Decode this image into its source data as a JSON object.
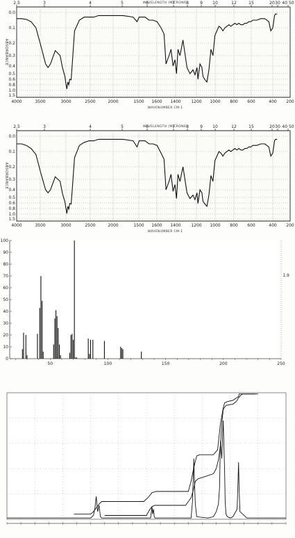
{
  "chart_data": [
    {
      "type": "line",
      "title": "WAVELENGTH (MICRONS)",
      "xlabel": "WAVENUMBER CM-1",
      "ylabel": "ABSORBANCE",
      "top_ticks": [
        "2.5",
        "3",
        "4",
        "5",
        "6",
        "7",
        "8",
        "9",
        "10",
        "12",
        "15",
        "20",
        "30",
        "40 50"
      ],
      "top_tick_pos": [
        4000,
        3333,
        2500,
        2000,
        1667,
        1429,
        1250,
        1111,
        1000,
        833,
        667,
        500,
        333,
        250
      ],
      "bottom_ticks": [
        "4000",
        "3500",
        "3000",
        "2500",
        "2000",
        "1500",
        "1600",
        "1400",
        "1200",
        "1000",
        "800",
        "600",
        "400",
        "200"
      ],
      "y_ticks": [
        "0.0",
        "0.1",
        "0.2",
        "0.3",
        "0.4",
        "0.5",
        "0.6",
        "0.8",
        "1.0",
        "1.5"
      ],
      "y_tick_vals": [
        0.0,
        0.1,
        0.2,
        0.3,
        0.4,
        0.5,
        0.6,
        0.8,
        1.0,
        1.5
      ],
      "ylim": [
        0,
        1.5
      ],
      "x": [
        4000,
        3900,
        3800,
        3700,
        3600,
        3500,
        3400,
        3350,
        3300,
        3200,
        3100,
        3050,
        3000,
        2980,
        2960,
        2940,
        2920,
        2900,
        2870,
        2850,
        2800,
        2700,
        2600,
        2500,
        2400,
        2300,
        2200,
        2100,
        2000,
        1900,
        1800,
        1760,
        1740,
        1700,
        1680,
        1660,
        1640,
        1600,
        1560,
        1520,
        1490,
        1470,
        1440,
        1420,
        1400,
        1380,
        1365,
        1350,
        1330,
        1300,
        1260,
        1230,
        1200,
        1180,
        1160,
        1150,
        1130,
        1110,
        1100,
        1080,
        1060,
        1040,
        1020,
        1000,
        980,
        960,
        940,
        920,
        900,
        880,
        860,
        840,
        820,
        800,
        780,
        760,
        740,
        720,
        700,
        680,
        660,
        640,
        620,
        600,
        560,
        520,
        480,
        440,
        420,
        400,
        390,
        380,
        370,
        360,
        350
      ],
      "y": [
        0.04,
        0.04,
        0.045,
        0.06,
        0.1,
        0.22,
        0.38,
        0.42,
        0.38,
        0.26,
        0.3,
        0.42,
        0.55,
        0.75,
        0.95,
        0.7,
        0.8,
        0.6,
        0.62,
        0.4,
        0.12,
        0.05,
        0.03,
        0.03,
        0.03,
        0.02,
        0.02,
        0.02,
        0.02,
        0.02,
        0.03,
        0.06,
        0.03,
        0.03,
        0.03,
        0.04,
        0.05,
        0.05,
        0.06,
        0.1,
        0.14,
        0.38,
        0.3,
        0.25,
        0.4,
        0.34,
        0.5,
        0.25,
        0.3,
        0.18,
        0.42,
        0.5,
        0.45,
        0.52,
        0.42,
        0.6,
        0.38,
        0.42,
        0.55,
        0.62,
        0.7,
        0.45,
        0.25,
        0.3,
        0.15,
        0.12,
        0.09,
        0.1,
        0.12,
        0.1,
        0.09,
        0.08,
        0.09,
        0.08,
        0.07,
        0.08,
        0.07,
        0.08,
        0.08,
        0.07,
        0.07,
        0.06,
        0.06,
        0.05,
        0.05,
        0.04,
        0.04,
        0.06,
        0.12,
        0.1,
        0.06,
        0.02,
        0.01,
        0.01,
        0.01
      ]
    },
    {
      "type": "line",
      "title": "WAVELENGTH (MICRONS)",
      "xlabel": "WAVENUMBER CM-1",
      "ylabel": "ABSORBANCE",
      "top_ticks": [
        "2.5",
        "3",
        "4",
        "5",
        "6",
        "7",
        "8",
        "9",
        "10",
        "12",
        "15",
        "20",
        "30",
        "40 50"
      ],
      "top_tick_pos": [
        4000,
        3333,
        2500,
        2000,
        1667,
        1429,
        1250,
        1111,
        1000,
        833,
        667,
        500,
        333,
        250
      ],
      "bottom_ticks": [
        "4000",
        "3500",
        "3000",
        "2500",
        "2000",
        "1500",
        "1600",
        "1400",
        "1200",
        "1000",
        "800",
        "600",
        "400",
        "200"
      ],
      "y_ticks": [
        "0.0",
        "0.1",
        "0.2",
        "0.3",
        "0.4",
        "0.5",
        "0.6",
        "0.8",
        "1.0",
        "1.5"
      ],
      "y_tick_vals": [
        0.0,
        0.1,
        0.2,
        0.3,
        0.4,
        0.5,
        0.6,
        0.8,
        1.0,
        1.5
      ],
      "ylim": [
        0,
        1.5
      ],
      "x": [
        4000,
        3900,
        3800,
        3700,
        3600,
        3500,
        3400,
        3350,
        3300,
        3200,
        3100,
        3050,
        3000,
        2980,
        2960,
        2940,
        2920,
        2900,
        2870,
        2850,
        2800,
        2700,
        2600,
        2500,
        2400,
        2300,
        2200,
        2100,
        2000,
        1900,
        1800,
        1760,
        1740,
        1700,
        1680,
        1660,
        1640,
        1600,
        1560,
        1520,
        1490,
        1470,
        1440,
        1420,
        1400,
        1380,
        1365,
        1350,
        1330,
        1300,
        1260,
        1230,
        1200,
        1180,
        1160,
        1150,
        1130,
        1110,
        1100,
        1080,
        1060,
        1040,
        1020,
        1000,
        980,
        960,
        940,
        920,
        900,
        880,
        860,
        840,
        820,
        800,
        780,
        760,
        740,
        720,
        700,
        680,
        660,
        640,
        620,
        600,
        560,
        520,
        480,
        440,
        420,
        400,
        390,
        380,
        370,
        360,
        350
      ],
      "y": [
        0.05,
        0.05,
        0.06,
        0.08,
        0.12,
        0.25,
        0.4,
        0.44,
        0.4,
        0.28,
        0.32,
        0.45,
        0.58,
        0.78,
        0.98,
        0.72,
        0.82,
        0.62,
        0.64,
        0.42,
        0.14,
        0.06,
        0.04,
        0.03,
        0.03,
        0.02,
        0.02,
        0.02,
        0.02,
        0.02,
        0.03,
        0.07,
        0.03,
        0.03,
        0.03,
        0.04,
        0.05,
        0.05,
        0.06,
        0.11,
        0.15,
        0.4,
        0.32,
        0.26,
        0.42,
        0.35,
        0.52,
        0.26,
        0.32,
        0.2,
        0.44,
        0.52,
        0.47,
        0.54,
        0.44,
        0.62,
        0.4,
        0.44,
        0.57,
        0.64,
        0.72,
        0.47,
        0.27,
        0.32,
        0.16,
        0.13,
        0.1,
        0.11,
        0.13,
        0.11,
        0.1,
        0.09,
        0.1,
        0.09,
        0.08,
        0.09,
        0.08,
        0.09,
        0.09,
        0.08,
        0.08,
        0.07,
        0.07,
        0.06,
        0.06,
        0.05,
        0.05,
        0.07,
        0.13,
        0.11,
        0.07,
        0.03,
        0.02,
        0.02,
        0.02
      ]
    },
    {
      "type": "bar",
      "x_ticks": [
        "50",
        "100",
        "150",
        "200",
        "250"
      ],
      "x_tick_vals": [
        50,
        100,
        150,
        200,
        250
      ],
      "y_ticks": [
        "100",
        "90",
        "80",
        "70",
        "60",
        "50",
        "40",
        "30",
        "20",
        "10",
        "0"
      ],
      "y_tick_vals": [
        100,
        90,
        80,
        70,
        60,
        50,
        40,
        30,
        20,
        10,
        0
      ],
      "right_ticks": [
        "1.9"
      ],
      "xlim": [
        15,
        250
      ],
      "ylim": [
        0,
        100
      ],
      "x": [
        26,
        27,
        29,
        30,
        39,
        41,
        42,
        43,
        44,
        53,
        54,
        55,
        56,
        57,
        58,
        59,
        67,
        68,
        69,
        70,
        71,
        72,
        73,
        83,
        84,
        85,
        87,
        97,
        111,
        112,
        113,
        129
      ],
      "values": [
        8,
        22,
        20,
        3,
        21,
        43,
        70,
        49,
        6,
        12,
        34,
        41,
        36,
        26,
        12,
        3,
        5,
        20,
        21,
        16,
        100,
        1,
        1,
        17,
        4,
        16,
        16,
        15,
        10,
        9,
        8,
        6
      ]
    },
    {
      "type": "line",
      "xlim": [
        10,
        0
      ],
      "ylim": [
        0,
        100
      ],
      "spectrum_x": [
        10,
        9.2,
        8.6,
        8.2,
        7.8,
        7.2,
        7.0,
        6.9,
        6.85,
        6.8,
        6.75,
        6.7,
        6.65,
        6.6,
        6.4,
        6.0,
        5.8,
        5.2,
        4.85,
        4.83,
        4.8,
        4.78,
        4.75,
        4.72,
        4.7,
        4.3,
        3.8,
        3.4,
        3.35,
        3.32,
        3.3,
        3.28,
        3.25,
        3.2,
        2.8,
        2.6,
        2.5,
        2.42,
        2.38,
        2.35,
        2.3,
        2.25,
        2.2,
        2.18,
        2.15,
        2.1,
        2.0,
        1.9,
        1.75,
        1.72,
        1.7,
        1.68,
        1.65,
        1.4,
        1.05,
        1.0,
        0.95,
        0.6,
        0.4,
        0.2,
        0
      ],
      "spectrum_y": [
        1,
        1,
        1,
        1,
        1,
        1,
        1,
        3,
        8,
        18,
        6,
        11,
        2,
        1,
        1,
        1,
        1,
        1,
        1,
        5,
        10,
        4,
        8,
        2,
        1,
        1,
        1,
        1,
        14,
        34,
        48,
        30,
        12,
        2,
        1,
        2,
        6,
        12,
        25,
        62,
        48,
        78,
        38,
        14,
        4,
        2,
        1,
        2,
        8,
        30,
        45,
        24,
        6,
        1,
        1,
        1,
        1,
        1,
        1,
        1,
        1
      ],
      "integral1_x": [
        7.6,
        7.0,
        6.9,
        6.7,
        6.6,
        5.1,
        4.95,
        4.8,
        4.65,
        3.5,
        3.4,
        3.3,
        3.2,
        3.1,
        2.6,
        2.45,
        2.35,
        2.25,
        2.2,
        2.1,
        1.9,
        1.7,
        1.68,
        1.6,
        1.5,
        1.05,
        1.0
      ],
      "integral1_y": [
        4,
        4,
        6,
        12,
        14,
        14,
        17,
        21,
        22,
        22,
        30,
        41,
        50,
        51,
        51,
        55,
        75,
        88,
        92,
        93,
        94,
        97,
        99,
        99,
        99,
        99,
        99
      ],
      "integral2_x": [
        6.5,
        5.0,
        4.9,
        4.8,
        4.7,
        3.6,
        3.4,
        3.32,
        3.25,
        3.15,
        3.0,
        2.6,
        2.5,
        2.42,
        2.35,
        2.3,
        2.25,
        2.15,
        1.9,
        1.78,
        1.7,
        1.62,
        1.55,
        1.1
      ],
      "integral2_y": [
        3,
        3,
        7,
        10,
        11,
        11,
        17,
        23,
        30,
        32,
        33,
        36,
        40,
        47,
        58,
        75,
        87,
        90,
        91,
        93,
        96,
        98,
        99,
        99
      ]
    }
  ]
}
